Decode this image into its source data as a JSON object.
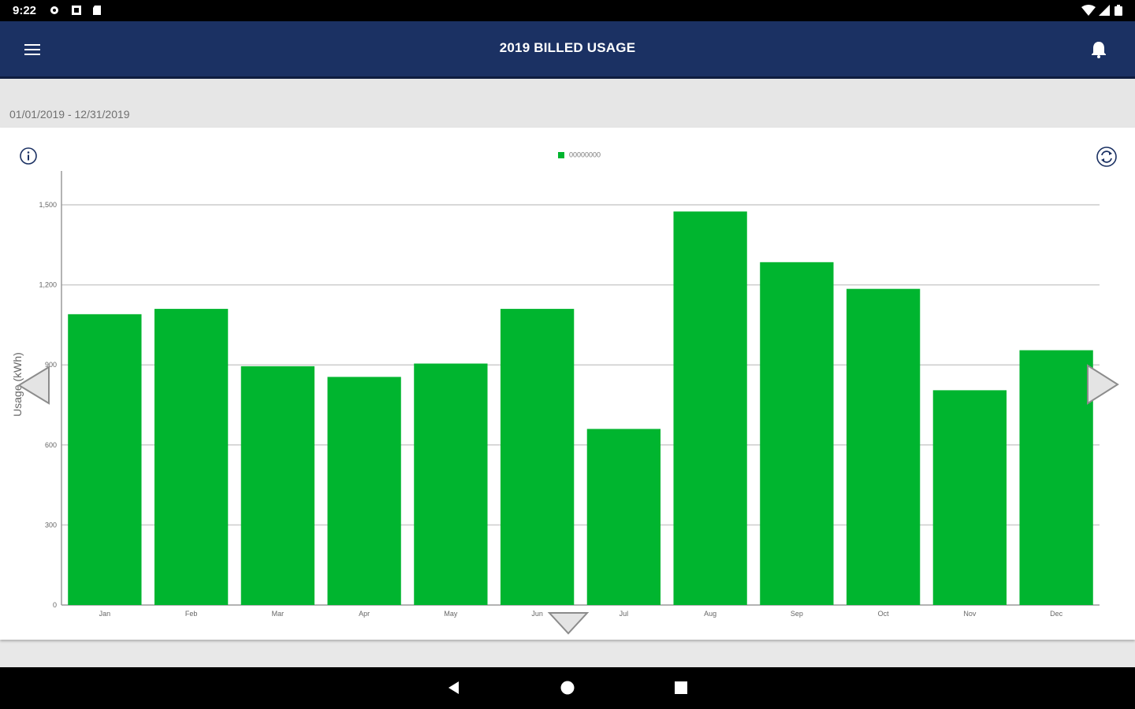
{
  "status_bar": {
    "time": "9:22"
  },
  "app_bar": {
    "title": "2019 BILLED USAGE"
  },
  "date_range": "01/01/2019 - 12/31/2019",
  "legend": {
    "label": "00000000"
  },
  "colors": {
    "app_bar": "#1b3163",
    "bar": "#00b52f",
    "grid": "#cccccc"
  },
  "icons": [
    "menu-icon",
    "bell-icon",
    "info-icon",
    "refresh-icon",
    "prev-arrow-icon",
    "next-arrow-icon",
    "expand-arrow-icon",
    "back-icon",
    "home-icon",
    "recents-icon"
  ],
  "chart_data": {
    "type": "bar",
    "categories": [
      "Jan",
      "Feb",
      "Mar",
      "Apr",
      "May",
      "Jun",
      "Jul",
      "Aug",
      "Sep",
      "Oct",
      "Nov",
      "Dec"
    ],
    "series": [
      {
        "name": "00000000",
        "values": [
          1090,
          1110,
          895,
          855,
          905,
          1110,
          660,
          1475,
          1285,
          1185,
          805,
          955
        ]
      }
    ],
    "ylabel": "Usage (kWh)",
    "y_ticks": [
      "0",
      "300",
      "600",
      "900",
      "1,200",
      "1,500"
    ],
    "ylim": [
      0,
      1500
    ],
    "grid": true,
    "legend_position": "top-center"
  }
}
